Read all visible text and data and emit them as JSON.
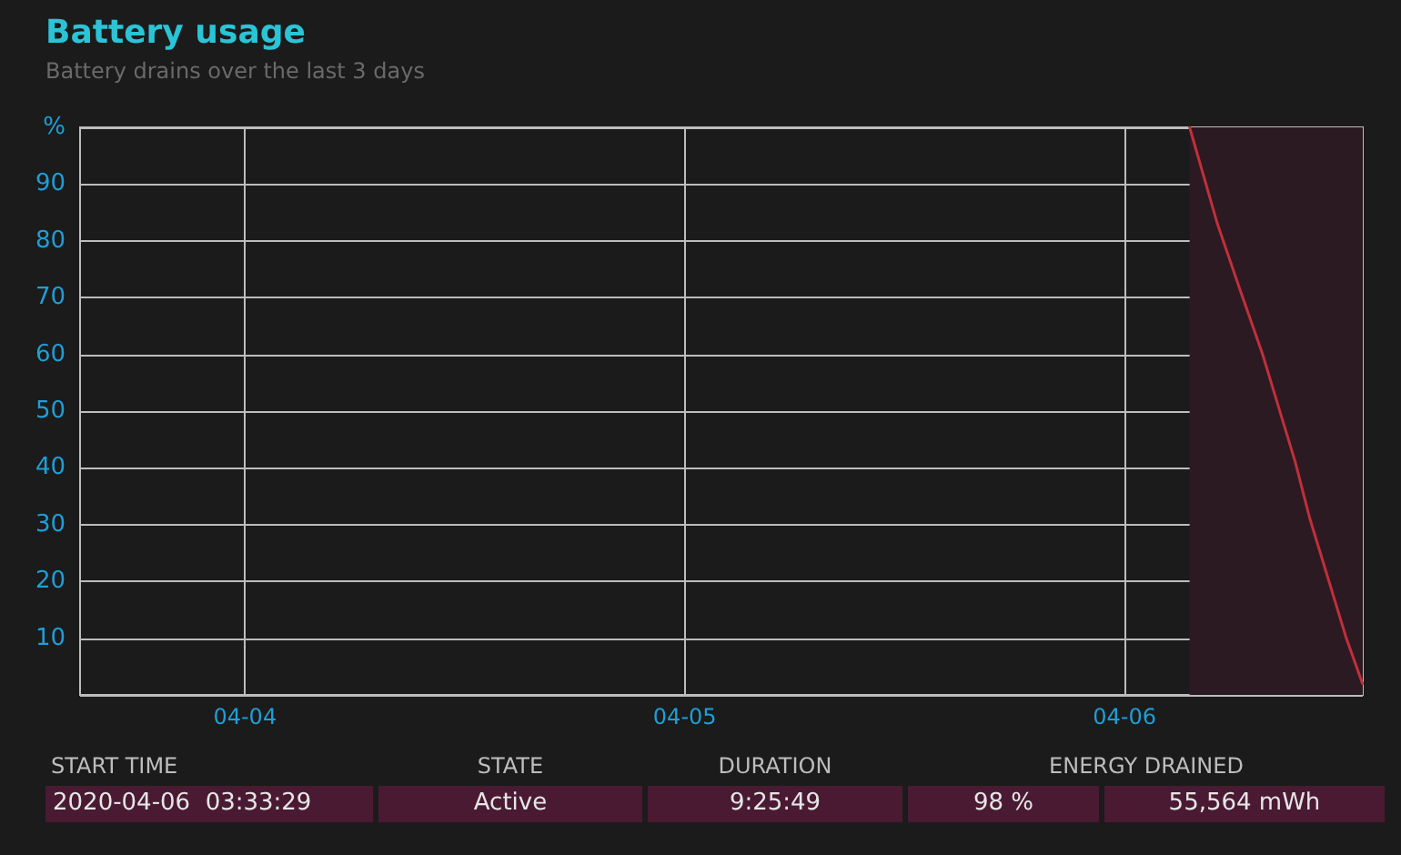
{
  "chart_data": {
    "type": "line",
    "title": "Battery usage",
    "subtitle": "Battery drains over the last 3 days",
    "x": [
      "2020-04-06T03:33",
      "2020-04-06T05:04",
      "2020-04-06T06:27",
      "2020-04-06T07:32",
      "2020-04-06T09:19",
      "2020-04-06T10:07",
      "2020-04-06T12:06",
      "2020-04-06T12:59"
    ],
    "series": [
      {
        "color": "#c0303a",
        "values": [
          100,
          83,
          70,
          60,
          41,
          31,
          10,
          2
        ]
      }
    ],
    "xlim": [
      "2020-04-03T15:00",
      "2020-04-06T13:00"
    ],
    "xticks": [
      {
        "value": "2020-04-04",
        "label": "04-04"
      },
      {
        "value": "2020-04-05",
        "label": "04-05"
      },
      {
        "value": "2020-04-06",
        "label": "04-06"
      }
    ],
    "ylim": [
      0,
      100
    ],
    "yticks": [
      {
        "value": 0,
        "label": null
      },
      10,
      20,
      30,
      40,
      50,
      60,
      70,
      80,
      90,
      {
        "value": 100,
        "label": "%"
      }
    ],
    "bands": [
      {
        "axis": "x",
        "from": "2020-04-06T03:33",
        "to": "2020-04-06T13:00",
        "color": "#2c1a22"
      }
    ],
    "grid": true,
    "marker": "none",
    "line_style": "solid",
    "annotations": [
      "START TIME",
      "STATE",
      "DURATION",
      "ENERGY DRAINED",
      "2020-04-06  03:33:29",
      "Active",
      "9:25:49",
      "98 %",
      "55,564 mWh"
    ]
  }
}
